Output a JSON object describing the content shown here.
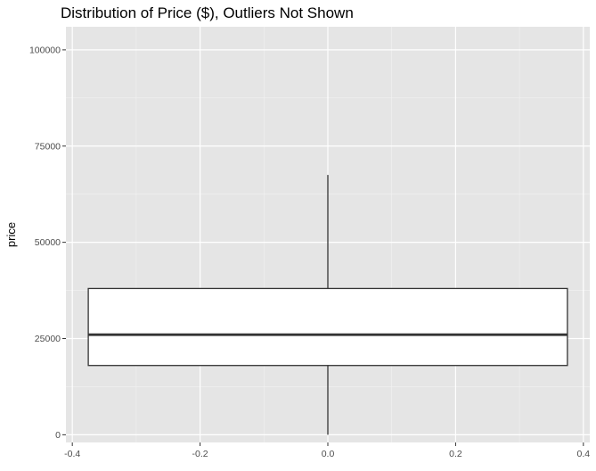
{
  "chart_data": {
    "type": "boxplot",
    "title": "Distribution of Price ($), Outliers Not Shown",
    "xlabel": "",
    "ylabel": "price",
    "xlim": [
      -0.41,
      0.41
    ],
    "ylim": [
      -2000,
      106000
    ],
    "x_ticks": [
      -0.4,
      -0.2,
      0.0,
      0.2,
      0.4
    ],
    "x_tick_labels": [
      "-0.4",
      "-0.2",
      "0.0",
      "0.2",
      "0.4"
    ],
    "y_ticks": [
      0,
      25000,
      50000,
      75000,
      100000
    ],
    "y_tick_labels": [
      "0",
      "25000",
      "50000",
      "75000",
      "100000"
    ],
    "grid": true,
    "box": {
      "x_center": 0,
      "x_range": [
        -0.375,
        0.375
      ],
      "whisker_low": 0,
      "q1": 18000,
      "median": 26000,
      "q3": 38000,
      "whisker_high": 67500
    },
    "colors": {
      "panel_background": "#e5e5e5",
      "grid_major": "#ffffff",
      "grid_minor": "#f2f2f2",
      "box_fill": "#ffffff",
      "box_line": "#333333"
    }
  }
}
